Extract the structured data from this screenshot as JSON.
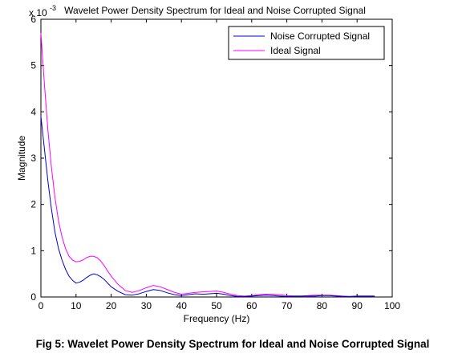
{
  "chart_data": {
    "type": "line",
    "title": "Wavelet Power Density Spectrum for Ideal and Noise Corrupted Signal",
    "xlabel": "Frequency (Hz)",
    "ylabel": "Magnitude",
    "y_multiplier": "x 10",
    "y_multiplier_exponent": "-3",
    "xlim": [
      0,
      100
    ],
    "ylim": [
      0,
      6
    ],
    "xticks": [
      "0",
      "10",
      "20",
      "30",
      "40",
      "50",
      "60",
      "70",
      "80",
      "90",
      "100"
    ],
    "yticks": [
      "0",
      "1",
      "2",
      "3",
      "4",
      "5",
      "6"
    ],
    "grid": false,
    "legend_position": "top-right",
    "series": [
      {
        "name": "Noise Corrupted Signal",
        "color": "#0000cc",
        "x": [
          0,
          1,
          2,
          3,
          4,
          5,
          6,
          7,
          8,
          9,
          10,
          11,
          12,
          13,
          14,
          15,
          16,
          17,
          18,
          19,
          20,
          22,
          24,
          26,
          28,
          30,
          32,
          34,
          36,
          38,
          40,
          42,
          44,
          46,
          48,
          50,
          52,
          54,
          56,
          58,
          60,
          62,
          64,
          66,
          68,
          70,
          72,
          74,
          76,
          78,
          80,
          82,
          84,
          86,
          88,
          90,
          92,
          95
        ],
        "y": [
          3.9,
          3.2,
          2.5,
          1.9,
          1.4,
          1.05,
          0.8,
          0.6,
          0.45,
          0.36,
          0.3,
          0.32,
          0.36,
          0.42,
          0.47,
          0.5,
          0.48,
          0.44,
          0.38,
          0.3,
          0.22,
          0.12,
          0.05,
          0.04,
          0.07,
          0.12,
          0.16,
          0.14,
          0.09,
          0.05,
          0.03,
          0.05,
          0.07,
          0.06,
          0.07,
          0.08,
          0.06,
          0.03,
          0.01,
          0.01,
          0.02,
          0.03,
          0.04,
          0.03,
          0.02,
          0.01,
          0.02,
          0.02,
          0.02,
          0.02,
          0.03,
          0.03,
          0.02,
          0.01,
          0.01,
          0.02,
          0.02,
          0.02
        ]
      },
      {
        "name": "Ideal Signal",
        "color": "#ff00ff",
        "x": [
          0,
          1,
          2,
          3,
          4,
          5,
          6,
          7,
          8,
          9,
          10,
          11,
          12,
          13,
          14,
          15,
          16,
          17,
          18,
          19,
          20,
          22,
          24,
          26,
          28,
          30,
          32,
          34,
          36,
          38,
          40,
          42,
          44,
          46,
          48,
          50,
          52,
          54,
          56,
          58,
          60,
          62,
          64,
          66,
          68,
          70,
          72,
          74,
          76,
          78,
          80,
          82,
          84,
          86,
          88,
          90,
          92,
          95
        ],
        "y": [
          5.7,
          4.6,
          3.6,
          2.8,
          2.15,
          1.65,
          1.3,
          1.05,
          0.88,
          0.8,
          0.76,
          0.77,
          0.8,
          0.85,
          0.88,
          0.88,
          0.85,
          0.78,
          0.68,
          0.56,
          0.45,
          0.27,
          0.14,
          0.1,
          0.14,
          0.2,
          0.25,
          0.22,
          0.16,
          0.1,
          0.06,
          0.08,
          0.1,
          0.11,
          0.12,
          0.13,
          0.1,
          0.06,
          0.03,
          0.02,
          0.03,
          0.05,
          0.06,
          0.06,
          0.05,
          0.03,
          0.02,
          0.02,
          0.03,
          0.04,
          0.04,
          0.04,
          0.03,
          0.02,
          0.01,
          0.02,
          0.02,
          0.02
        ]
      }
    ]
  },
  "caption": "Fig 5: Wavelet Power Density Spectrum for Ideal and Noise Corrupted Signal"
}
